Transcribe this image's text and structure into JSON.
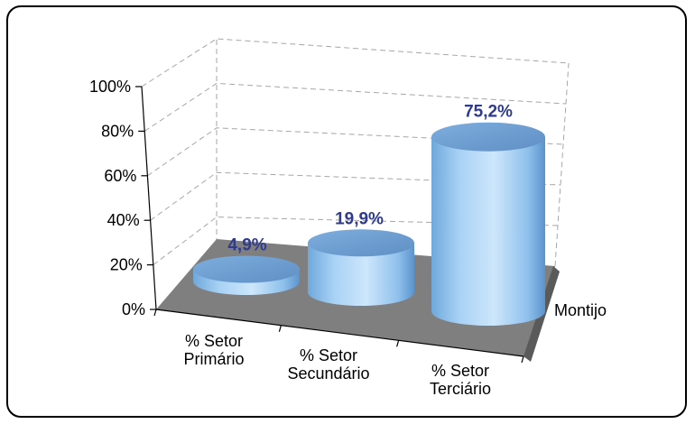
{
  "chart_data": {
    "type": "bar",
    "style": "3d-cylinder",
    "categories": [
      [
        "% Setor",
        "Primário"
      ],
      [
        "% Setor",
        "Secundário"
      ],
      [
        "% Setor",
        "Terciário"
      ]
    ],
    "series": [
      {
        "name": "Montijo",
        "values": [
          4.9,
          19.9,
          75.2
        ],
        "data_labels": [
          "4,9%",
          "19,9%",
          "75,2%"
        ]
      }
    ],
    "y_ticks": [
      "0%",
      "20%",
      "40%",
      "60%",
      "80%",
      "100%"
    ],
    "ylim": [
      0,
      100
    ],
    "grid": true,
    "legend": "none",
    "colors": {
      "cylinder_light": "#b9dcf7",
      "cylinder_mid": "#8cc2ee",
      "cylinder_dark": "#5b9bd5",
      "cylinder_top": "#6f9fd1",
      "floor": "#7f7f7f",
      "floor_edge": "#5a5a5a",
      "data_label": "#2e3b8f"
    }
  }
}
